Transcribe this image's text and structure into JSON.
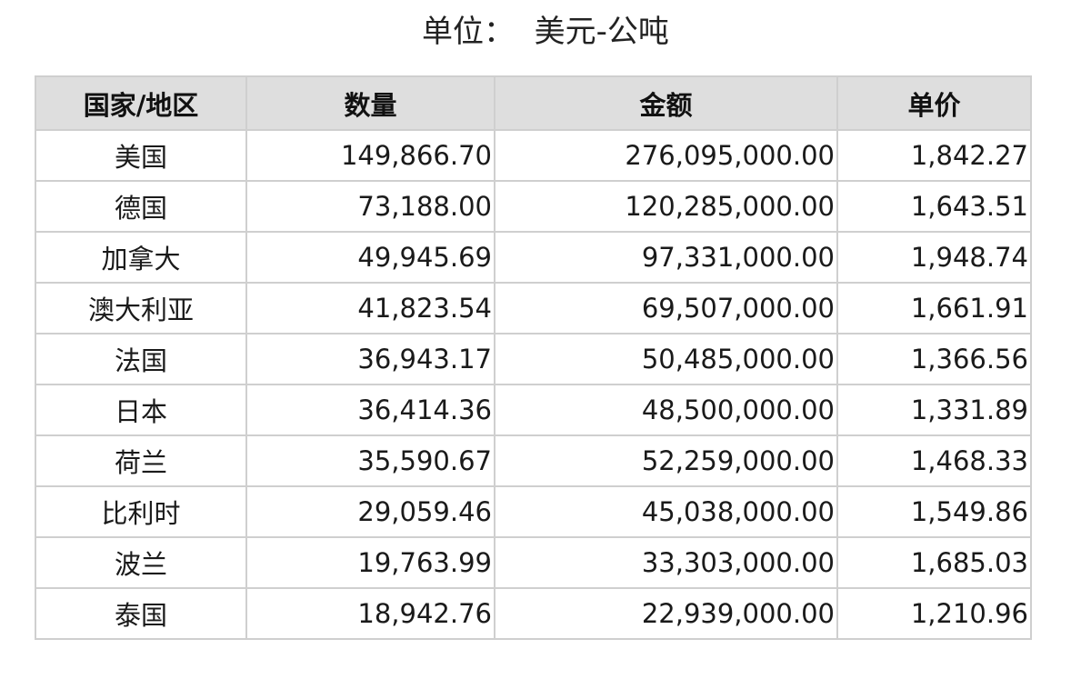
{
  "unit_label": "单位：  美元-公吨",
  "table": {
    "headers": [
      "国家/地区",
      "数量",
      "金额",
      "单价"
    ],
    "rows": [
      {
        "country": "美国",
        "quantity": "149,866.70",
        "amount": "276,095,000.00",
        "unit_price": "1,842.27"
      },
      {
        "country": "德国",
        "quantity": "73,188.00",
        "amount": "120,285,000.00",
        "unit_price": "1,643.51"
      },
      {
        "country": "加拿大",
        "quantity": "49,945.69",
        "amount": "97,331,000.00",
        "unit_price": "1,948.74"
      },
      {
        "country": "澳大利亚",
        "quantity": "41,823.54",
        "amount": "69,507,000.00",
        "unit_price": "1,661.91"
      },
      {
        "country": "法国",
        "quantity": "36,943.17",
        "amount": "50,485,000.00",
        "unit_price": "1,366.56"
      },
      {
        "country": "日本",
        "quantity": "36,414.36",
        "amount": "48,500,000.00",
        "unit_price": "1,331.89"
      },
      {
        "country": "荷兰",
        "quantity": "35,590.67",
        "amount": "52,259,000.00",
        "unit_price": "1,468.33"
      },
      {
        "country": "比利时",
        "quantity": "29,059.46",
        "amount": "45,038,000.00",
        "unit_price": "1,549.86"
      },
      {
        "country": "波兰",
        "quantity": "19,763.99",
        "amount": "33,303,000.00",
        "unit_price": "1,685.03"
      },
      {
        "country": "泰国",
        "quantity": "18,942.76",
        "amount": "22,939,000.00",
        "unit_price": "1,210.96"
      }
    ]
  }
}
